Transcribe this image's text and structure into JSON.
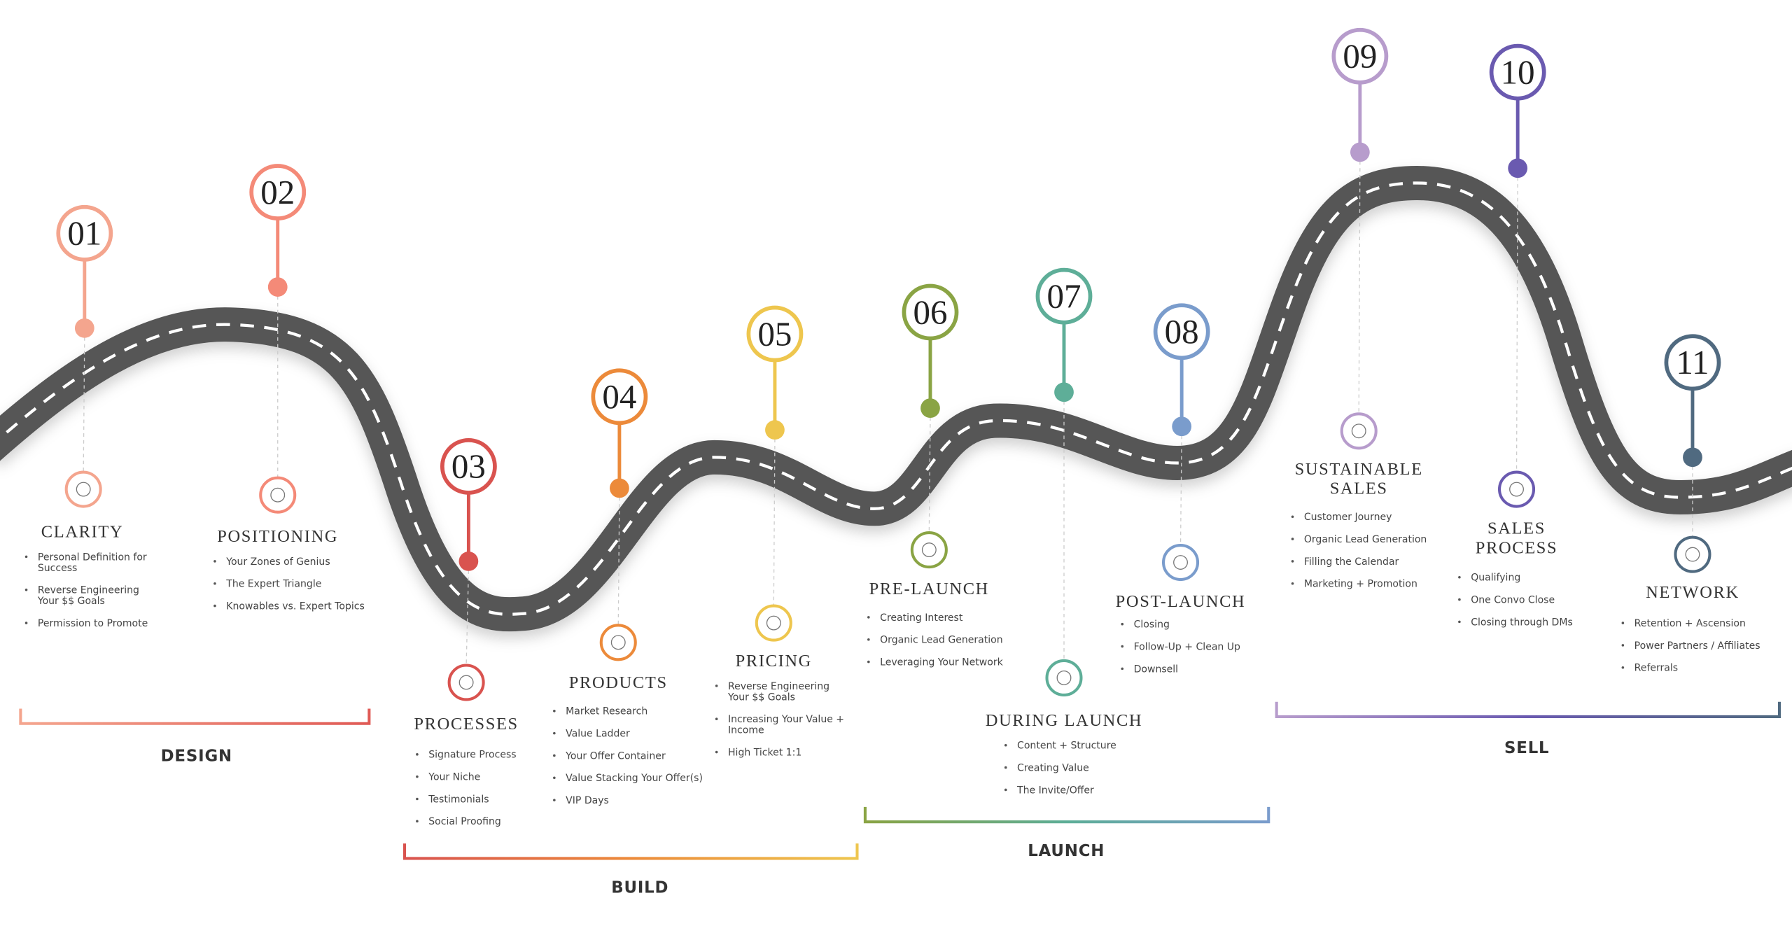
{
  "stages": [
    {
      "number": "01",
      "title": [
        "CLARITY"
      ],
      "items": [
        [
          "Personal Definition for",
          "Success"
        ],
        [
          "Reverse Engineering",
          "Your $$ Goals"
        ],
        "Permission to Promote"
      ]
    },
    {
      "number": "02",
      "title": [
        "POSITIONING"
      ],
      "items": [
        "Your Zones of Genius",
        "The Expert Triangle",
        "Knowables vs. Expert Topics"
      ]
    },
    {
      "number": "03",
      "title": [
        "PROCESSES"
      ],
      "items": [
        "Signature Process",
        "Your Niche",
        "Testimonials",
        "Social Proofing"
      ]
    },
    {
      "number": "04",
      "title": [
        "PRODUCTS"
      ],
      "items": [
        "Market Research",
        "Value Ladder",
        "Your Offer Container",
        "Value Stacking Your Offer(s)",
        "VIP Days"
      ]
    },
    {
      "number": "05",
      "title": [
        "PRICING"
      ],
      "items": [
        [
          "Reverse Engineering",
          "Your $$ Goals"
        ],
        [
          "Increasing Your Value +",
          "Income"
        ],
        "High Ticket 1:1"
      ]
    },
    {
      "number": "06",
      "title": [
        "PRE-LAUNCH"
      ],
      "items": [
        "Creating Interest",
        "Organic Lead Generation",
        "Leveraging Your Network"
      ]
    },
    {
      "number": "07",
      "title": [
        "DURING LAUNCH"
      ],
      "items": [
        "Content + Structure",
        "Creating Value",
        "The Invite/Offer"
      ]
    },
    {
      "number": "08",
      "title": [
        "POST-LAUNCH"
      ],
      "items": [
        "Closing",
        "Follow-Up + Clean Up",
        "Downsell"
      ]
    },
    {
      "number": "09",
      "title": [
        "SUSTAINABLE",
        "SALES"
      ],
      "items": [
        "Customer Journey",
        "Organic Lead Generation",
        "Filling the Calendar",
        "Marketing + Promotion"
      ]
    },
    {
      "number": "10",
      "title": [
        "SALES",
        "PROCESS"
      ],
      "items": [
        "Qualifying",
        "One Convo Close",
        "Closing through DMs"
      ]
    },
    {
      "number": "11",
      "title": [
        "NETWORK"
      ],
      "items": [
        "Retention + Ascension",
        "Power Partners / Affiliates",
        "Referrals"
      ]
    }
  ],
  "phases": [
    "DESIGN",
    "BUILD",
    "LAUNCH",
    "SELL"
  ]
}
